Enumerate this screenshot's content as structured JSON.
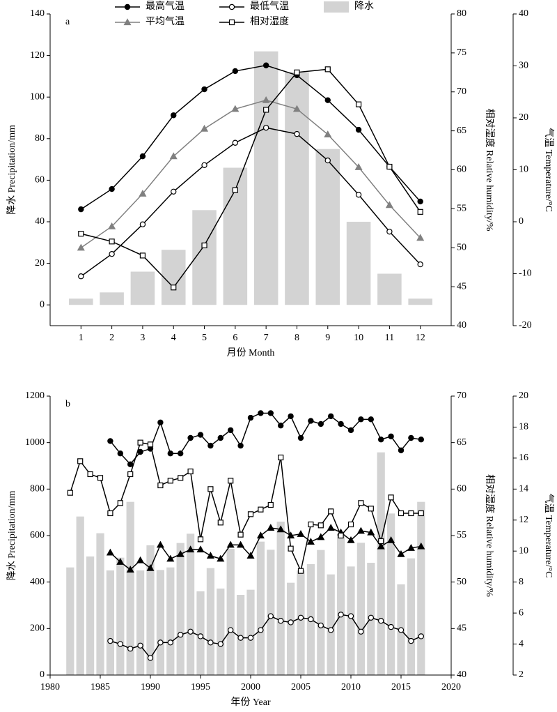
{
  "chart_data": [
    {
      "type": "combo",
      "annotation": "a",
      "xlabel": "月份 Month",
      "ylabel": "降水 Precipitation/mm",
      "y2label": "相对湿度 Relative humidity/%",
      "y3label": "气温 Temperature/°C",
      "x": [
        1,
        2,
        3,
        4,
        5,
        6,
        7,
        8,
        9,
        10,
        11,
        12
      ],
      "xlim": [
        0,
        13
      ],
      "xticks": [
        1,
        2,
        3,
        4,
        5,
        6,
        7,
        8,
        9,
        10,
        11,
        12
      ],
      "ylim": [
        -10,
        140
      ],
      "yticks": [
        0,
        20,
        40,
        60,
        80,
        100,
        120,
        140
      ],
      "y2lim": [
        40,
        80
      ],
      "y2ticks": [
        40,
        45,
        50,
        55,
        60,
        65,
        70,
        75,
        80
      ],
      "y3lim": [
        -20,
        40
      ],
      "y3ticks": [
        -20,
        -10,
        0,
        10,
        20,
        30,
        40
      ],
      "legend": true,
      "series": [
        {
          "name": "降水",
          "kind": "bar",
          "axis": "y",
          "color": "#d3d3d3",
          "values": [
            3,
            6,
            16,
            26.5,
            45.6,
            66,
            122,
            112,
            75,
            40,
            15,
            3
          ]
        },
        {
          "name": "最高气温",
          "kind": "line",
          "axis": "y3",
          "color": "#000000",
          "marker": "circle",
          "values": [
            2.4,
            6.3,
            12.6,
            20.5,
            25.5,
            29.0,
            30.1,
            28.2,
            23.4,
            17.7,
            10.6,
            3.9
          ]
        },
        {
          "name": "平均气温",
          "kind": "line",
          "axis": "y3",
          "color": "#808080",
          "marker": "triangle",
          "values": [
            -5.0,
            -0.9,
            5.4,
            12.6,
            17.9,
            21.7,
            23.4,
            21.7,
            16.8,
            10.5,
            3.2,
            -3.1
          ]
        },
        {
          "name": "最低气温",
          "kind": "line",
          "axis": "y3",
          "color": "#000000",
          "marker": "circle-open",
          "values": [
            -10.5,
            -6.2,
            -0.5,
            5.8,
            10.9,
            15.2,
            18.1,
            16.9,
            11.8,
            5.2,
            -1.9,
            -8.2
          ]
        },
        {
          "name": "相对湿度",
          "kind": "line",
          "axis": "y2",
          "color": "#000000",
          "marker": "square-open",
          "values": [
            51.8,
            50.8,
            49.0,
            44.9,
            50.3,
            57.4,
            67.7,
            72.5,
            72.9,
            68.4,
            60.4,
            54.6
          ]
        }
      ]
    },
    {
      "type": "combo",
      "annotation": "b",
      "xlabel": "年份 Year",
      "ylabel": "降水 Precipitation/mm",
      "y2label": "相对湿度 Relative humidity/%",
      "y3label": "气温 Temperature/°C",
      "x": [
        1982,
        1983,
        1984,
        1985,
        1986,
        1987,
        1988,
        1989,
        1990,
        1991,
        1992,
        1993,
        1994,
        1995,
        1996,
        1997,
        1998,
        1999,
        2000,
        2001,
        2002,
        2003,
        2004,
        2005,
        2006,
        2007,
        2008,
        2009,
        2010,
        2011,
        2012,
        2013,
        2014,
        2015,
        2016,
        2017
      ],
      "xlim": [
        1980,
        2020
      ],
      "xticks": [
        1980,
        1985,
        1990,
        1995,
        2000,
        2005,
        2010,
        2015,
        2020
      ],
      "ylim": [
        0,
        1200
      ],
      "yticks": [
        0,
        200,
        400,
        600,
        800,
        1000,
        1200
      ],
      "y2lim": [
        40,
        70
      ],
      "y2ticks": [
        40,
        45,
        50,
        55,
        60,
        65,
        70
      ],
      "y3lim": [
        2,
        20
      ],
      "y3ticks": [
        2,
        4,
        6,
        8,
        10,
        12,
        14,
        16,
        18,
        20
      ],
      "legend": false,
      "series": [
        {
          "kind": "bar",
          "axis": "y",
          "color": "#d3d3d3",
          "values": [
            463,
            682,
            510,
            610,
            450,
            505,
            745,
            450,
            558,
            452,
            463,
            568,
            608,
            360,
            460,
            372,
            543,
            345,
            367,
            574,
            539,
            660,
            397,
            450,
            477,
            538,
            433,
            598,
            467,
            569,
            483,
            958,
            695,
            390,
            502,
            745
          ]
        },
        {
          "kind": "line",
          "axis": "y3",
          "color": "#000000",
          "marker": "circle",
          "values": [
            null,
            null,
            null,
            null,
            17.1,
            16.3,
            15.6,
            16.4,
            16.6,
            18.3,
            16.3,
            16.3,
            17.3,
            17.5,
            16.8,
            17.3,
            17.8,
            16.8,
            18.6,
            18.9,
            18.9,
            18.1,
            18.7,
            17.3,
            18.4,
            18.2,
            18.7,
            18.2,
            17.8,
            18.5,
            18.5,
            17.2,
            17.4,
            16.5,
            17.3,
            17.2
          ]
        },
        {
          "kind": "line",
          "axis": "y3",
          "color": "#000000",
          "marker": "triangle",
          "values": [
            null,
            null,
            null,
            null,
            9.9,
            9.3,
            8.8,
            9.4,
            8.9,
            10.4,
            9.5,
            9.8,
            10.1,
            10.1,
            9.7,
            9.5,
            10.4,
            10.4,
            9.7,
            11.0,
            11.5,
            11.4,
            11.0,
            11.1,
            10.6,
            10.9,
            11.5,
            11.2,
            10.7,
            11.3,
            11.2,
            10.3,
            10.7,
            9.8,
            10.2,
            10.3
          ]
        },
        {
          "kind": "line",
          "axis": "y3",
          "color": "#000000",
          "marker": "circle-open",
          "values": [
            null,
            null,
            null,
            null,
            4.2,
            4.0,
            3.7,
            3.9,
            3.1,
            4.1,
            4.1,
            4.6,
            4.8,
            4.5,
            4.1,
            4.0,
            4.9,
            4.4,
            4.4,
            4.9,
            5.8,
            5.5,
            5.4,
            5.7,
            5.6,
            5.2,
            4.9,
            5.9,
            5.8,
            4.8,
            5.7,
            5.5,
            5.1,
            4.9,
            4.2,
            4.5
          ]
        },
        {
          "kind": "line",
          "axis": "y2",
          "color": "#000000",
          "marker": "square-open",
          "values": [
            59.6,
            63.0,
            61.6,
            61.2,
            57.4,
            58.5,
            61.6,
            65.0,
            64.8,
            60.4,
            60.9,
            61.2,
            61.9,
            54.6,
            60.0,
            56.4,
            60.9,
            55.1,
            57.3,
            57.8,
            58.3,
            63.4,
            53.6,
            51.2,
            56.2,
            56.1,
            57.6,
            55.0,
            56.2,
            58.5,
            57.9,
            54.4,
            59.1,
            57.4,
            57.4,
            57.4
          ]
        }
      ]
    }
  ]
}
